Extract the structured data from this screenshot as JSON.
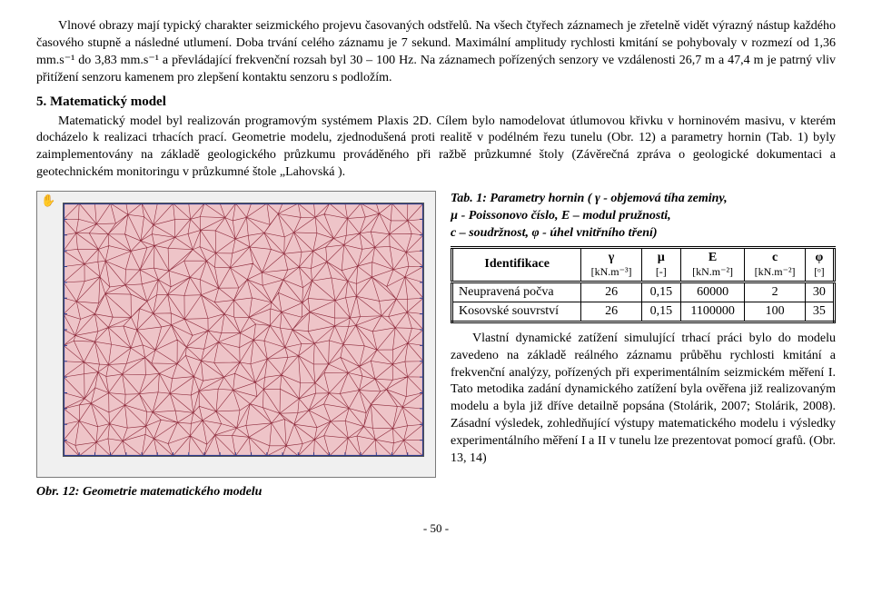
{
  "intro_paragraph": "Vlnové obrazy mají typický charakter seizmického projevu časovaných odstřelů. Na všech čtyřech záznamech je zřetelně vidět výrazný nástup každého časového stupně a následné utlumení. Doba trvání celého záznamu je 7 sekund. Maximální amplitudy rychlosti kmitání se pohybovaly v rozmezí od 1,36 mm.s⁻¹ do 3,83 mm.s⁻¹ a převládající frekvenční rozsah byl 30 – 100 Hz. Na záznamech pořízených senzory ve vzdálenosti 26,7 m a 47,4 m je patrný vliv přitížení senzoru kamenem pro zlepšení kontaktu senzoru s podložím.",
  "section5_title": "5. Matematický model",
  "section5_body": "Matematický model byl realizován programovým systémem Plaxis 2D. Cílem bylo namodelovat útlumovou křivku v horninovém masivu, v kterém docházelo k realizaci trhacích prací. Geometrie modelu, zjednodušená proti realitě v podélném řezu tunelu (Obr. 12) a parametry hornin (Tab. 1) byly zaimplementovány na základě geologického průzkumu prováděného při ražbě průzkumné štoly (Závěrečná zpráva o geologické dokumentaci a geotechnickém monitoringu v průzkumné štole „Lahovská ).",
  "tab1_caption_l1": "Tab. 1:  Parametry hornin ( γ - objemová tíha zeminy,",
  "tab1_caption_l2": "µ - Poissonovo  číslo, E – modul pružnosti,",
  "tab1_caption_l3": "c – soudržnost, φ - úhel vnitřního tření)",
  "table": {
    "headers": {
      "id": "Identifikace",
      "gamma_sym": "γ",
      "gamma_unit": "[kN.m⁻³]",
      "mu_sym": "µ",
      "mu_unit": "[-]",
      "E_sym": "E",
      "E_unit": "[kN.m⁻²]",
      "c_sym": "c",
      "c_unit": "[kN.m⁻²]",
      "phi_sym": "φ",
      "phi_unit": "[ᵒ]"
    },
    "rows": [
      {
        "label": "Neupravená počva",
        "gamma": "26",
        "mu": "0,15",
        "E": "60000",
        "c": "2",
        "phi": "30"
      },
      {
        "label": "Kosovské souvrství",
        "gamma": "26",
        "mu": "0,15",
        "E": "1100000",
        "c": "100",
        "phi": "35"
      }
    ]
  },
  "right_paragraph": "Vlastní dynamické zatížení simulující trhací práci bylo do modelu zavedeno na základě reálného záznamu průběhu rychlosti kmitání a frekvenční analýzy, pořízených při experimentálním seizmickém měření I. Tato metodika zadání dynamického zatížení byla ověřena již realizovaným modelu a byla již dříve detailně popsána (Stolárik, 2007; Stolárik, 2008). Zásadní výsledek, zohledňující výstupy matematického modelu i výsledky experimentálního měření I a II v tunelu lze prezentovat pomocí grafů. (Obr. 13, 14)",
  "fig12_caption": "Obr. 12: Geometrie matematického modelu",
  "page_number": "- 50 -",
  "mesh": {
    "node_fill": "#eec4c8",
    "stroke": "#8e2b3c",
    "stroke_width": 0.6,
    "boundary_stroke": "#2b3a8a"
  }
}
